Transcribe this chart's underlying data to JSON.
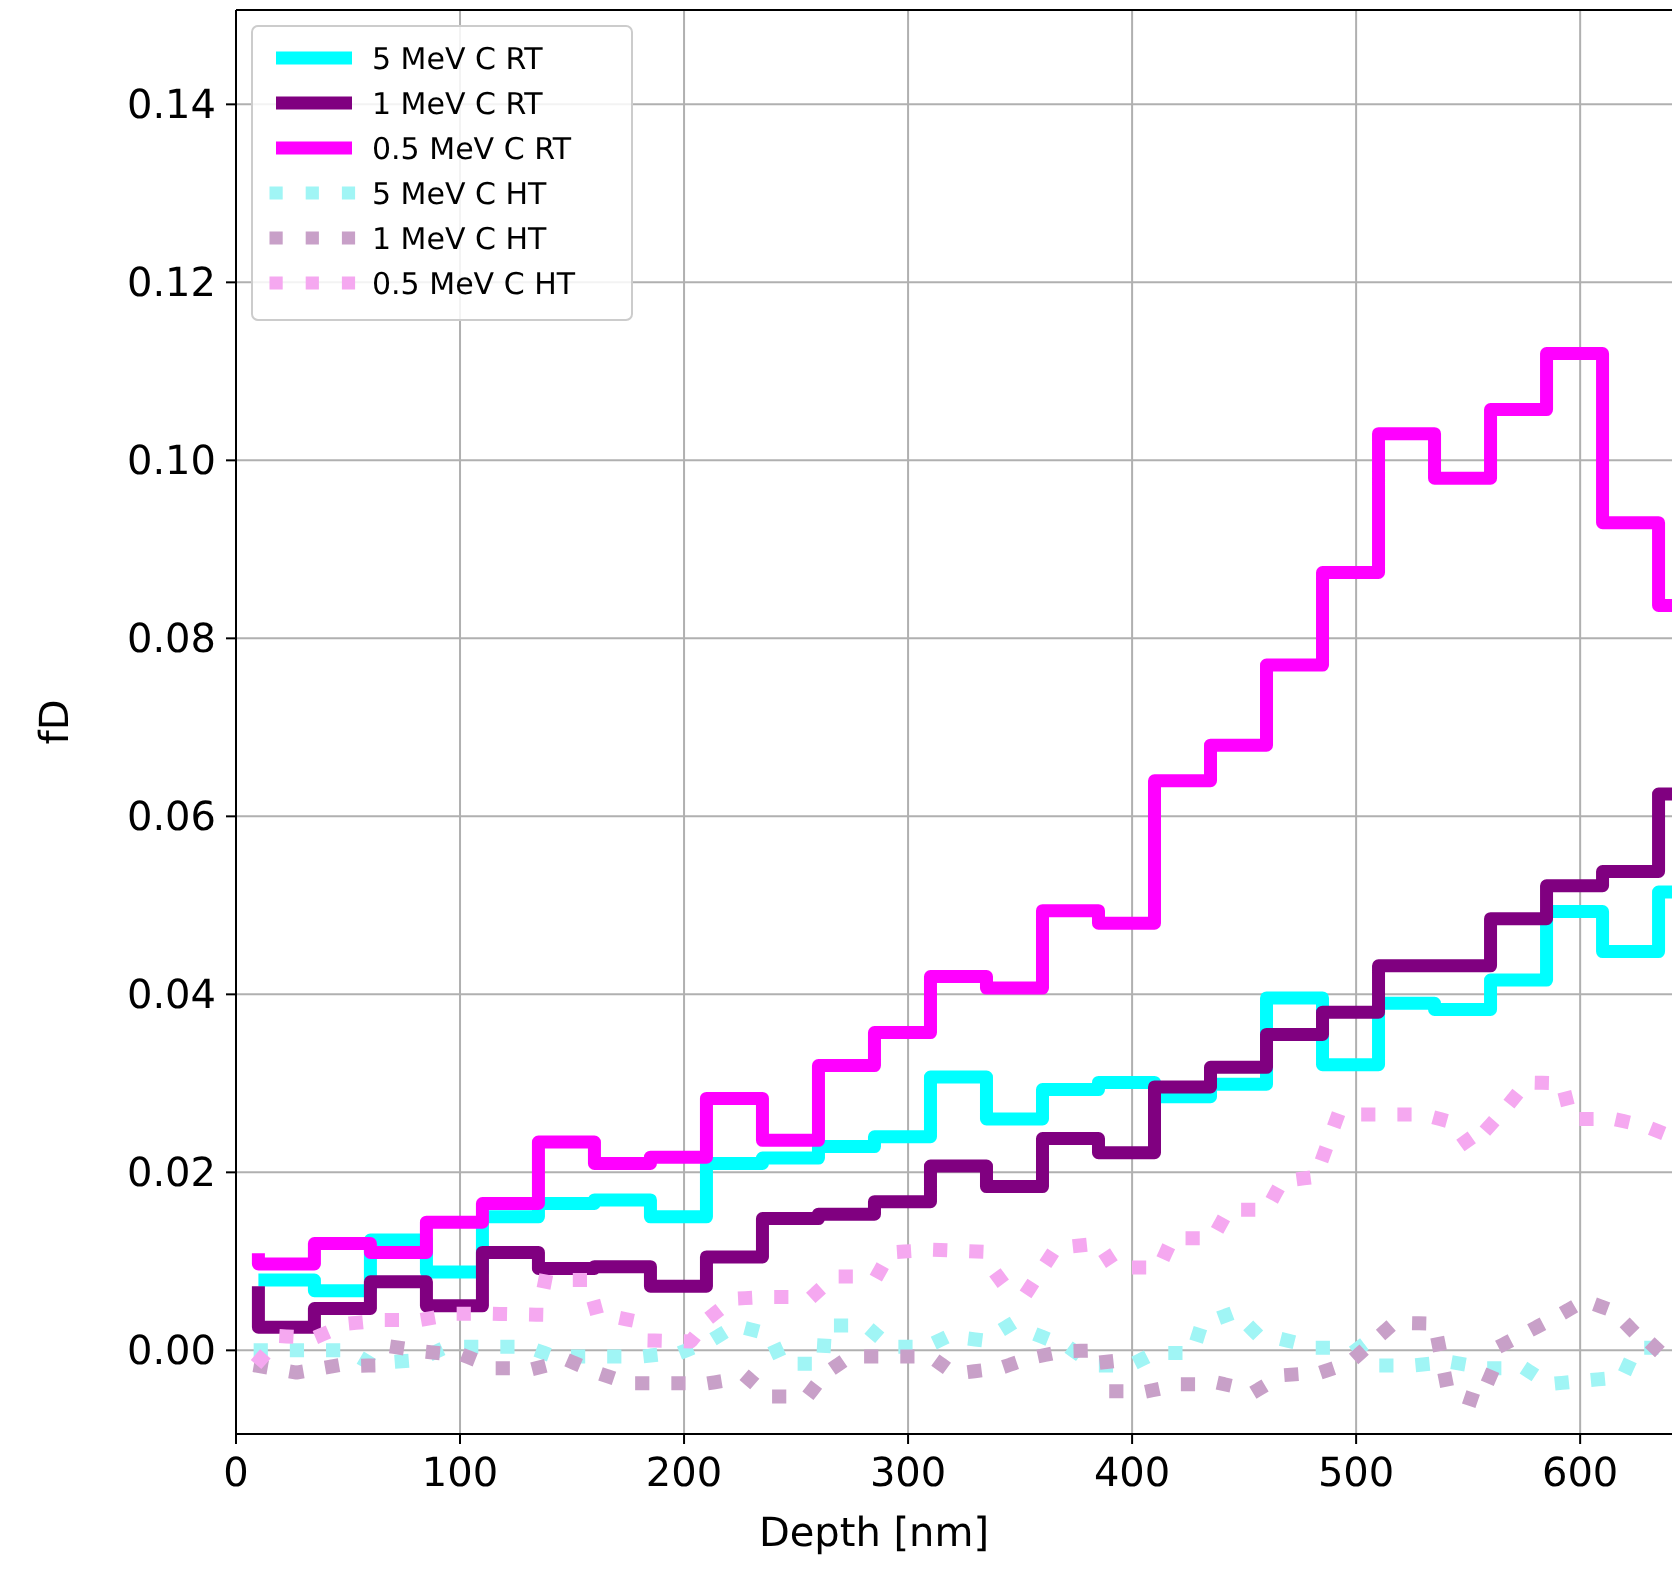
{
  "chart_data": {
    "type": "step",
    "xlabel": "Depth [nm]",
    "ylabel": "fD",
    "xlim": [
      0,
      641
    ],
    "ylim": [
      -0.0094,
      0.1506
    ],
    "xticks": [
      0,
      100,
      200,
      300,
      400,
      500,
      600
    ],
    "yticks": [
      {
        "value": 0,
        "label": "0.00"
      },
      {
        "value": 0.02,
        "label": "0.02"
      },
      {
        "value": 0.04,
        "label": "0.04"
      },
      {
        "value": 0.06,
        "label": "0.06"
      },
      {
        "value": 0.08,
        "label": "0.08"
      },
      {
        "value": 0.1,
        "label": "0.10"
      },
      {
        "value": 0.12,
        "label": "0.12"
      },
      {
        "value": 0.14,
        "label": "0.14"
      }
    ],
    "grid": true,
    "legend": "top left",
    "marker": "none",
    "x": [
      10,
      35,
      60,
      85,
      110,
      135,
      160,
      185,
      210,
      235,
      260,
      285,
      310,
      335,
      360,
      385,
      410,
      435,
      460,
      485,
      510,
      535,
      560,
      585,
      610,
      635,
      641
    ],
    "series": [
      {
        "name": "5 MeV C RT",
        "color": "#00ffff",
        "line_style": "solid",
        "values": [
          0.0079,
          0.0079,
          0.0067,
          0.0124,
          0.0088,
          0.015,
          0.0165,
          0.0169,
          0.015,
          0.021,
          0.0216,
          0.0229,
          0.024,
          0.0307,
          0.026,
          0.0293,
          0.0301,
          0.0285,
          0.0299,
          0.0396,
          0.0321,
          0.039,
          0.0383,
          0.0416,
          0.0493,
          0.0448,
          0.0515
        ]
      },
      {
        "name": "1 MeV C RT",
        "color": "#800080",
        "line_style": "solid",
        "values": [
          0.0072,
          0.0026,
          0.0047,
          0.0077,
          0.005,
          0.011,
          0.0092,
          0.0094,
          0.0072,
          0.0105,
          0.0148,
          0.0153,
          0.0167,
          0.0207,
          0.0184,
          0.0238,
          0.0222,
          0.0296,
          0.0318,
          0.0355,
          0.038,
          0.0432,
          0.0432,
          0.0485,
          0.0522,
          0.0538,
          0.0625
        ]
      },
      {
        "name": "0.5 MeV C RT",
        "color": "#ff00ff",
        "line_style": "solid",
        "values": [
          0.0109,
          0.0097,
          0.012,
          0.011,
          0.0144,
          0.0165,
          0.0234,
          0.021,
          0.0217,
          0.0283,
          0.0236,
          0.032,
          0.0357,
          0.042,
          0.0407,
          0.0494,
          0.048,
          0.064,
          0.068,
          0.077,
          0.0874,
          0.103,
          0.098,
          0.1057,
          0.112,
          0.093,
          0.0837
        ]
      },
      {
        "name": "5 MeV C HT",
        "color": "#a0f5f5",
        "type": "line",
        "line_style": "dotted",
        "x": [
          11,
          32,
          50,
          60,
          81,
          94,
          112,
          130,
          142,
          163,
          181,
          199,
          212,
          223,
          238,
          244,
          262,
          263,
          281,
          292,
          308,
          318,
          334,
          345,
          359,
          372,
          383,
          399,
          410,
          427,
          431,
          446,
          455,
          482,
          501,
          507,
          525,
          542,
          558,
          575,
          586,
          602,
          619,
          625,
          641
        ],
        "values": [
          0,
          0,
          0,
          -0.0015,
          -0.0011,
          0.0004,
          0.0004,
          0.0004,
          -0.0007,
          -0.0007,
          -0.0007,
          -0.0002,
          0.0011,
          0.0028,
          0.0018,
          -0.0015,
          -0.0015,
          0.0028,
          0.0028,
          0.0004,
          0.0004,
          0.0016,
          0.0011,
          0.0028,
          0.0016,
          0.0003,
          -0.0017,
          -0.0017,
          -0.0003,
          -0.0003,
          0.0029,
          0.0043,
          0.002,
          0.0003,
          0.0003,
          -0.0017,
          -0.0017,
          -0.0013,
          -0.002,
          -0.002,
          -0.0038,
          -0.0034,
          -0.003,
          0.0003,
          0.0003
        ]
      },
      {
        "name": "1 MeV C HT",
        "color": "#c8a0c8",
        "type": "line",
        "line_style": "dotted",
        "x": [
          11,
          27,
          43,
          61,
          70,
          86,
          102,
          116,
          134,
          148,
          161,
          175,
          193,
          211,
          228,
          238,
          255,
          263,
          274,
          292,
          310,
          320,
          325,
          341,
          354,
          369,
          388,
          390,
          407,
          422,
          441,
          455,
          467,
          484,
          497,
          517,
          535,
          541,
          555,
          566,
          579,
          591,
          602,
          615,
          632,
          641
        ],
        "values": [
          -0.0018,
          -0.0025,
          -0.0018,
          -0.0017,
          0.0004,
          -0.0002,
          -0.0006,
          -0.002,
          -0.002,
          -0.0011,
          -0.0025,
          -0.0037,
          -0.0037,
          -0.0037,
          -0.003,
          -0.0052,
          -0.0052,
          -0.0026,
          -0.0007,
          -0.0007,
          -0.0007,
          -0.0025,
          -0.0025,
          -0.002,
          -0.0009,
          -0.0001,
          0,
          -0.0046,
          -0.0046,
          -0.0038,
          -0.0038,
          -0.0046,
          -0.0028,
          -0.0025,
          -0.0014,
          0.0031,
          0.003,
          -0.0046,
          -0.0058,
          0.0007,
          0.0024,
          0.004,
          0.0056,
          0.0044,
          0,
          0.0024
        ]
      },
      {
        "name": "0.5 MeV C HT",
        "color": "#f5a8f0",
        "type": "line",
        "line_style": "dotted",
        "x": [
          11,
          20,
          35,
          50,
          66,
          82,
          98,
          116,
          135,
          138,
          157,
          161,
          176,
          186,
          203,
          212,
          222,
          238,
          257,
          267,
          286,
          292,
          311,
          332,
          341,
          353,
          366,
          385,
          392,
          412,
          418,
          436,
          443,
          460,
          467,
          482,
          492,
          510,
          530,
          543,
          551,
          568,
          576,
          592,
          596,
          615,
          629,
          641
        ],
        "values": [
          -0.001,
          0.0016,
          0.0014,
          0.003,
          0.0034,
          0.0034,
          0.0041,
          0.0041,
          0.004,
          0.0079,
          0.0079,
          0.0042,
          0.0034,
          0.0011,
          0.001,
          0.0038,
          0.0058,
          0.006,
          0.006,
          0.0083,
          0.0083,
          0.011,
          0.0113,
          0.0111,
          0.008,
          0.0065,
          0.0115,
          0.012,
          0.0093,
          0.0093,
          0.0126,
          0.0126,
          0.0158,
          0.0158,
          0.019,
          0.0195,
          0.0265,
          0.0265,
          0.0265,
          0.0256,
          0.0228,
          0.0276,
          0.0301,
          0.03,
          0.026,
          0.026,
          0.0252,
          0.024
        ]
      }
    ]
  }
}
